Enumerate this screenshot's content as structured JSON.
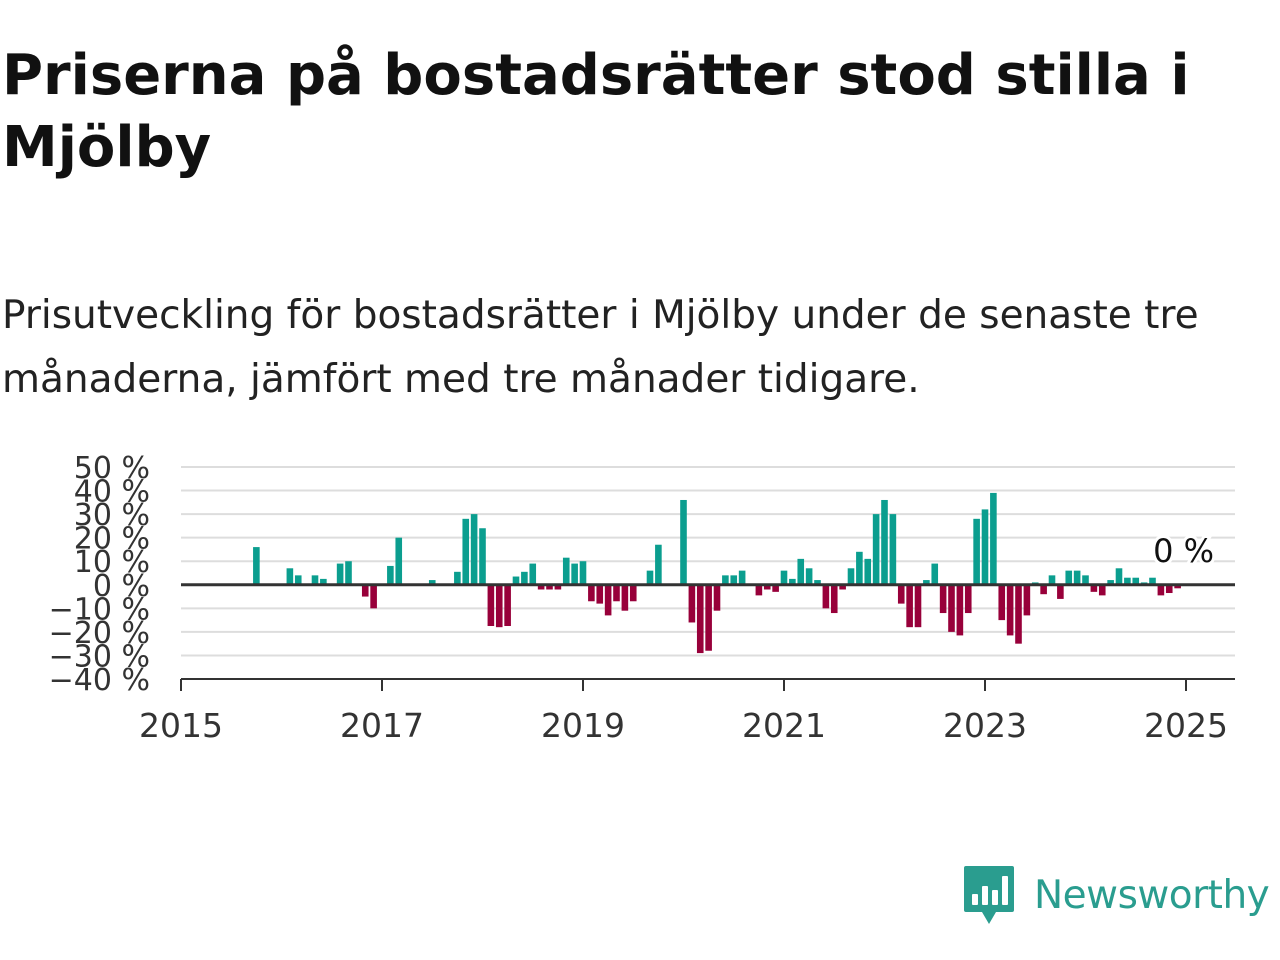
{
  "title": "Priserna på bostadsrätter stod stilla i Mjölby",
  "subtitle": "Prisutveckling för bostadsrätter i Mjölby under de senaste tre månaderna, jämfört med tre månader tidigare.",
  "brand": {
    "name": "Newsworthy",
    "icon": "newsworthy-logo-icon",
    "color": "#2a9d8f"
  },
  "chart_data": {
    "type": "bar",
    "x_axis": {
      "type": "date",
      "range": [
        "2015-01",
        "2025-06"
      ],
      "tick_labels": [
        "2015",
        "2017",
        "2019",
        "2021",
        "2023",
        "2025"
      ]
    },
    "y_axis": {
      "unit": "%",
      "range": [
        -40,
        50
      ],
      "tick_values": [
        50,
        40,
        30,
        20,
        10,
        0,
        -10,
        -20,
        -30,
        -40
      ],
      "tick_labels": [
        "50 %",
        "40 %",
        "30 %",
        "20 %",
        "10 %",
        "0 %",
        "−10 %",
        "−20 %",
        "−30 %",
        "−40 %"
      ]
    },
    "grid": true,
    "colors": {
      "positive": "#0b9e8f",
      "negative": "#98003a",
      "zero_line": "#333333",
      "grid": "#dddddd"
    },
    "last_value_label": "0 %",
    "series": [
      {
        "points": [
          {
            "date": "2015-10",
            "value": 16
          },
          {
            "date": "2016-02",
            "value": 7
          },
          {
            "date": "2016-03",
            "value": 4
          },
          {
            "date": "2016-05",
            "value": 4
          },
          {
            "date": "2016-06",
            "value": 2.5
          },
          {
            "date": "2016-08",
            "value": 9
          },
          {
            "date": "2016-09",
            "value": 10
          },
          {
            "date": "2016-11",
            "value": -5
          },
          {
            "date": "2016-12",
            "value": -10
          },
          {
            "date": "2017-02",
            "value": 8
          },
          {
            "date": "2017-03",
            "value": 20
          },
          {
            "date": "2017-07",
            "value": 2
          },
          {
            "date": "2017-10",
            "value": 5.5
          },
          {
            "date": "2017-11",
            "value": 28
          },
          {
            "date": "2017-12",
            "value": 30
          },
          {
            "date": "2018-01",
            "value": 24
          },
          {
            "date": "2018-02",
            "value": -17.5
          },
          {
            "date": "2018-03",
            "value": -18
          },
          {
            "date": "2018-04",
            "value": -17.5
          },
          {
            "date": "2018-05",
            "value": 3.5
          },
          {
            "date": "2018-06",
            "value": 5.5
          },
          {
            "date": "2018-07",
            "value": 9
          },
          {
            "date": "2018-08",
            "value": -2
          },
          {
            "date": "2018-09",
            "value": -2
          },
          {
            "date": "2018-10",
            "value": -2
          },
          {
            "date": "2018-11",
            "value": 11.5
          },
          {
            "date": "2018-12",
            "value": 9
          },
          {
            "date": "2019-01",
            "value": 10
          },
          {
            "date": "2019-02",
            "value": -7
          },
          {
            "date": "2019-03",
            "value": -8
          },
          {
            "date": "2019-04",
            "value": -13
          },
          {
            "date": "2019-05",
            "value": -7
          },
          {
            "date": "2019-06",
            "value": -11
          },
          {
            "date": "2019-07",
            "value": -7
          },
          {
            "date": "2019-09",
            "value": 6
          },
          {
            "date": "2019-10",
            "value": 17
          },
          {
            "date": "2020-01",
            "value": 36
          },
          {
            "date": "2020-02",
            "value": -16
          },
          {
            "date": "2020-03",
            "value": -29
          },
          {
            "date": "2020-04",
            "value": -28
          },
          {
            "date": "2020-05",
            "value": -11
          },
          {
            "date": "2020-06",
            "value": 4
          },
          {
            "date": "2020-07",
            "value": 4
          },
          {
            "date": "2020-08",
            "value": 6
          },
          {
            "date": "2020-10",
            "value": -4.5
          },
          {
            "date": "2020-11",
            "value": -2
          },
          {
            "date": "2020-12",
            "value": -3
          },
          {
            "date": "2021-01",
            "value": 6
          },
          {
            "date": "2021-02",
            "value": 2.5
          },
          {
            "date": "2021-03",
            "value": 11
          },
          {
            "date": "2021-04",
            "value": 7
          },
          {
            "date": "2021-05",
            "value": 2
          },
          {
            "date": "2021-06",
            "value": -10
          },
          {
            "date": "2021-07",
            "value": -12
          },
          {
            "date": "2021-08",
            "value": -2
          },
          {
            "date": "2021-09",
            "value": 7
          },
          {
            "date": "2021-10",
            "value": 14
          },
          {
            "date": "2021-11",
            "value": 11
          },
          {
            "date": "2021-12",
            "value": 30
          },
          {
            "date": "2022-01",
            "value": 36
          },
          {
            "date": "2022-02",
            "value": 30
          },
          {
            "date": "2022-03",
            "value": -8
          },
          {
            "date": "2022-04",
            "value": -18
          },
          {
            "date": "2022-05",
            "value": -18
          },
          {
            "date": "2022-06",
            "value": 2
          },
          {
            "date": "2022-07",
            "value": 9
          },
          {
            "date": "2022-08",
            "value": -12
          },
          {
            "date": "2022-09",
            "value": -20
          },
          {
            "date": "2022-10",
            "value": -21.5
          },
          {
            "date": "2022-11",
            "value": -12
          },
          {
            "date": "2022-12",
            "value": 28
          },
          {
            "date": "2023-01",
            "value": 32
          },
          {
            "date": "2023-02",
            "value": 39
          },
          {
            "date": "2023-03",
            "value": -15
          },
          {
            "date": "2023-04",
            "value": -21.5
          },
          {
            "date": "2023-05",
            "value": -25
          },
          {
            "date": "2023-06",
            "value": -13
          },
          {
            "date": "2023-07",
            "value": 1
          },
          {
            "date": "2023-08",
            "value": -4
          },
          {
            "date": "2023-09",
            "value": 4
          },
          {
            "date": "2023-10",
            "value": -6
          },
          {
            "date": "2023-11",
            "value": 6
          },
          {
            "date": "2023-12",
            "value": 6
          },
          {
            "date": "2024-01",
            "value": 4
          },
          {
            "date": "2024-02",
            "value": -3
          },
          {
            "date": "2024-03",
            "value": -4.5
          },
          {
            "date": "2024-04",
            "value": 2
          },
          {
            "date": "2024-05",
            "value": 7
          },
          {
            "date": "2024-06",
            "value": 3
          },
          {
            "date": "2024-07",
            "value": 3
          },
          {
            "date": "2024-08",
            "value": 1
          },
          {
            "date": "2024-09",
            "value": 3
          },
          {
            "date": "2024-10",
            "value": -4.5
          },
          {
            "date": "2024-11",
            "value": -3.5
          },
          {
            "date": "2024-12",
            "value": -1.5
          },
          {
            "date": "2025-01",
            "value": 0
          }
        ]
      }
    ]
  }
}
